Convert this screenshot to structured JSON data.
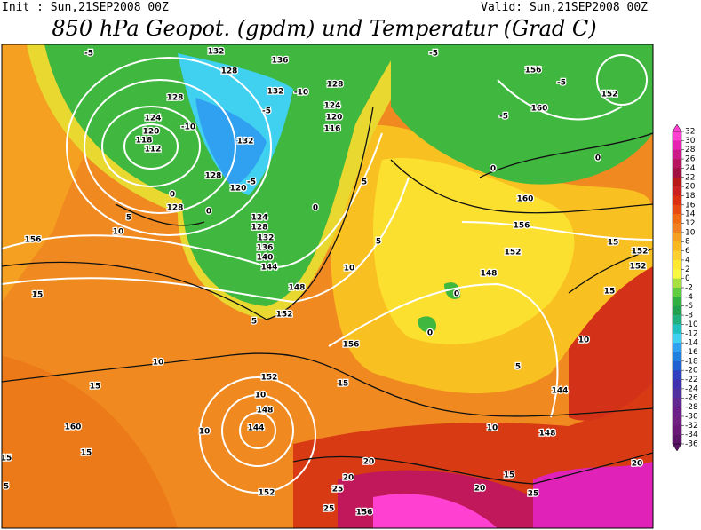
{
  "header": {
    "init": "Init : Sun,21SEP2008 00Z",
    "valid": "Valid: Sun,21SEP2008 00Z",
    "title": "850 hPa Geopot. (gpdm) und Temperatur (Grad C)"
  },
  "colorbar": {
    "ticks": [
      32,
      30,
      28,
      26,
      24,
      22,
      20,
      18,
      16,
      14,
      12,
      10,
      8,
      6,
      4,
      2,
      0,
      -2,
      -4,
      -6,
      -8,
      -10,
      -12,
      -14,
      -16,
      -18,
      -20,
      -22,
      -24,
      -26,
      -28,
      -30,
      -32,
      -34,
      -36
    ],
    "colors": [
      "#ff40d0",
      "#e822b0",
      "#cc1a88",
      "#b8155f",
      "#a01040",
      "#b81818",
      "#cc2020",
      "#dd3010",
      "#e84a10",
      "#ef6a10",
      "#f08020",
      "#f5a020",
      "#f8b820",
      "#fcd030",
      "#ffe830",
      "#f8f840",
      "#a8e040",
      "#60cc40",
      "#30b040",
      "#20a050",
      "#20b080",
      "#20c0c0",
      "#40d0f0",
      "#30a0f0",
      "#2080e0",
      "#2060d0",
      "#3040c0",
      "#4030b0",
      "#5030a0",
      "#602890",
      "#6a2088",
      "#702080",
      "#6a1878",
      "#5a1468"
    ]
  },
  "contour_labels": [
    "128",
    "124",
    "120",
    "118",
    "112",
    "132",
    "136",
    "128",
    "132",
    "128",
    "124",
    "120",
    "116",
    "132",
    "128",
    "120",
    "124",
    "128",
    "132",
    "136",
    "140",
    "144",
    "148",
    "152",
    "156",
    "156",
    "152",
    "148",
    "144",
    "152",
    "156",
    "160",
    "128",
    "160",
    "156",
    "152",
    "160",
    "156",
    "152",
    "148",
    "144",
    "148",
    "152",
    "152",
    "-5",
    "-10",
    "-5",
    "0",
    "0",
    "0",
    "-5",
    "-10",
    "-5",
    "-5",
    "-5",
    "0",
    "0",
    "5",
    "5",
    "10",
    "10",
    "10",
    "5",
    "15",
    "15",
    "15",
    "10",
    "10",
    "15",
    "10",
    "10",
    "5",
    "0",
    "0",
    "15",
    "15",
    "20",
    "20",
    "20",
    "25",
    "25",
    "25",
    "20",
    "15",
    "5",
    "15",
    "5"
  ]
}
